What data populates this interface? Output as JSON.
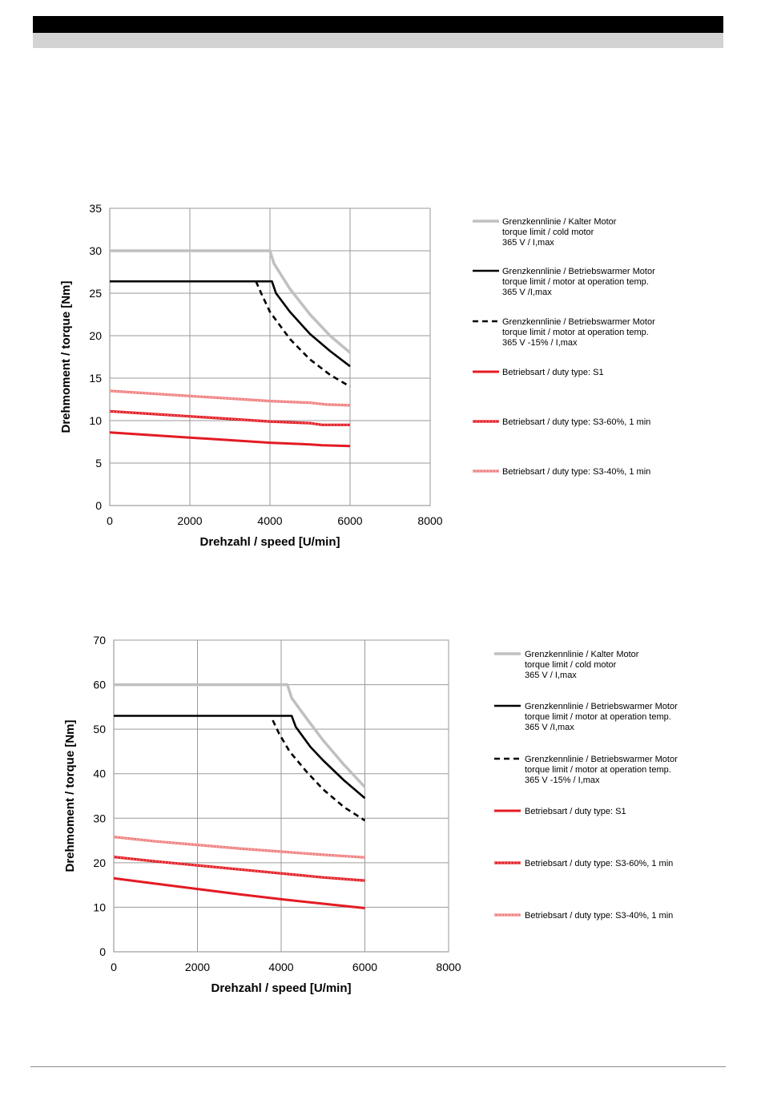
{
  "colors": {
    "header_bar": "#000000",
    "header_band": "#d3d3d3",
    "cold_motor": "#c0c0c0",
    "warm_motor": "#000000",
    "s1": "#e31b23",
    "s3_60": "#e31b23",
    "s3_40": "#f08080"
  },
  "legend": [
    {
      "key": "cold",
      "lines": [
        "Grenzkennlinie / Kalter Motor",
        "torque limit / cold  motor",
        "365 V / I,max"
      ]
    },
    {
      "key": "warm",
      "lines": [
        "Grenzkennlinie / Betriebswarmer Motor",
        "torque limit / motor at operation temp.",
        "365 V /I,max"
      ]
    },
    {
      "key": "warm15",
      "lines": [
        "Grenzkennlinie / Betriebswarmer Motor",
        "torque limit / motor at operation temp.",
        "365 V  -15% / I,max"
      ]
    },
    {
      "key": "s1",
      "lines": [
        "Betriebsart / duty type: S1"
      ]
    },
    {
      "key": "s3_60",
      "lines": [
        "Betriebsart / duty type: S3-60%, 1 min"
      ]
    },
    {
      "key": "s3_40",
      "lines": [
        "Betriebsart / duty type: S3-40%, 1 min"
      ]
    }
  ],
  "chart_data": [
    {
      "type": "line",
      "xlabel": "Drehzahl / speed [U/min]",
      "ylabel": "Drehmoment  / torque [Nm]",
      "xlim": [
        0,
        8000
      ],
      "ylim": [
        0,
        35
      ],
      "xticks": [
        0,
        2000,
        4000,
        6000,
        8000
      ],
      "yticks": [
        0,
        5,
        10,
        15,
        20,
        25,
        30,
        35
      ],
      "grid": true,
      "legend_position": "right",
      "series": [
        {
          "key": "cold",
          "x": [
            0,
            4000,
            4100,
            4500,
            5000,
            5500,
            6000
          ],
          "y": [
            30,
            30,
            28.5,
            25.5,
            22.5,
            20,
            18
          ]
        },
        {
          "key": "warm",
          "x": [
            0,
            4050,
            4150,
            4500,
            5000,
            5500,
            6000
          ],
          "y": [
            26.4,
            26.4,
            25,
            22.8,
            20.2,
            18.2,
            16.4
          ]
        },
        {
          "key": "warm15",
          "x": [
            3650,
            3800,
            4000,
            4500,
            5000,
            5500,
            6000
          ],
          "y": [
            26.4,
            24.8,
            22.8,
            19.6,
            17.2,
            15.4,
            14
          ]
        },
        {
          "key": "s1",
          "x": [
            0,
            1000,
            2000,
            3000,
            4000,
            5000,
            5300,
            6000
          ],
          "y": [
            8.6,
            8.3,
            8,
            7.7,
            7.4,
            7.2,
            7.1,
            7
          ]
        },
        {
          "key": "s3_60",
          "x": [
            0,
            1000,
            2000,
            3000,
            4000,
            5000,
            5300,
            6000
          ],
          "y": [
            11.1,
            10.8,
            10.5,
            10.2,
            9.9,
            9.7,
            9.5,
            9.5
          ]
        },
        {
          "key": "s3_40",
          "x": [
            0,
            1000,
            2000,
            3000,
            4000,
            5000,
            5400,
            6000
          ],
          "y": [
            13.5,
            13.2,
            12.9,
            12.6,
            12.3,
            12.1,
            11.9,
            11.8
          ]
        }
      ]
    },
    {
      "type": "line",
      "xlabel": "Drehzahl / speed [U/min]",
      "ylabel": "Drehmoment  / torque [Nm]",
      "xlim": [
        0,
        8000
      ],
      "ylim": [
        0,
        70
      ],
      "xticks": [
        0,
        2000,
        4000,
        6000,
        8000
      ],
      "yticks": [
        0,
        10,
        20,
        30,
        40,
        50,
        60,
        70
      ],
      "grid": true,
      "legend_position": "right",
      "series": [
        {
          "key": "cold",
          "x": [
            0,
            4150,
            4250,
            4600,
            5000,
            5500,
            6000
          ],
          "y": [
            60,
            60,
            57,
            52.5,
            47.5,
            42,
            37
          ]
        },
        {
          "key": "warm",
          "x": [
            0,
            4250,
            4350,
            4700,
            5000,
            5500,
            6000
          ],
          "y": [
            53,
            53,
            50.5,
            46,
            43,
            38.5,
            34.5
          ]
        },
        {
          "key": "warm15",
          "x": [
            3800,
            3950,
            4200,
            4600,
            5000,
            5500,
            6000
          ],
          "y": [
            52,
            49,
            45,
            40.5,
            36.5,
            32.5,
            29.5
          ]
        },
        {
          "key": "s1",
          "x": [
            0,
            1000,
            2000,
            3000,
            4000,
            5000,
            6000
          ],
          "y": [
            16.5,
            15.3,
            14.1,
            12.9,
            11.8,
            10.8,
            9.8
          ]
        },
        {
          "key": "s3_60",
          "x": [
            0,
            1000,
            2000,
            3000,
            4000,
            5000,
            6000
          ],
          "y": [
            21.3,
            20.3,
            19.4,
            18.5,
            17.6,
            16.7,
            16
          ]
        },
        {
          "key": "s3_40",
          "x": [
            0,
            1000,
            2000,
            3000,
            4000,
            5000,
            6000
          ],
          "y": [
            25.8,
            24.8,
            24,
            23.2,
            22.5,
            21.8,
            21.2
          ]
        }
      ]
    }
  ]
}
